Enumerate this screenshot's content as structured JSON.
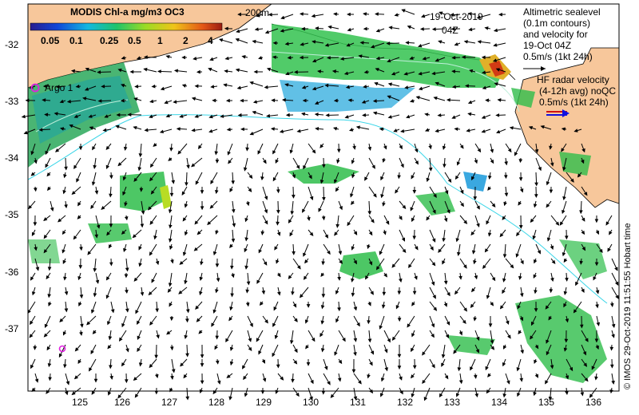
{
  "map": {
    "colorbar": {
      "title": "MODIS Chl-a mg/m3 OC3",
      "tick_labels": [
        "0.05",
        "0.1",
        "0.25",
        "0.5",
        "1",
        "2",
        "4"
      ],
      "colors": [
        "#2a1d8f",
        "#1046d8",
        "#13b8e0",
        "#1fc46a",
        "#9bdc24",
        "#f0c419",
        "#e35616",
        "#9a1d12"
      ]
    },
    "contour_label": "200m",
    "date_label": "19-Oct-2019",
    "time_label": "04Z",
    "altimetry_legend": [
      "Altimetric sealevel",
      "(0.1m contours)",
      "and velocity for",
      "19-Oct 04Z",
      "0.5m/s (1kt 24h)"
    ],
    "radar_legend": [
      "HF radar velocity",
      "(4-12h avg) noQC",
      "0.5m/s (1kt 24h)"
    ],
    "argo_label": "Argo 1",
    "x_ticks": [
      "125",
      "126",
      "127",
      "128",
      "129",
      "130",
      "131",
      "132",
      "133",
      "134",
      "135",
      "136"
    ],
    "y_ticks": [
      "-32",
      "-33",
      "-34",
      "-35",
      "-36",
      "-37"
    ],
    "credit": "© IMOS 29-Oct-2019 11:51:55 Hobart time",
    "colors": {
      "land": "#f7c79b",
      "ocean": "#ffffff",
      "contour": "#3bd6e8",
      "argo": "#e020e0",
      "radar_arrow": "#1010e0",
      "radar_arrow_2": "#d01010",
      "chl_high": "#d23a14",
      "chl_mid": "#2ebd4a",
      "chl_low": "#3aa8e0"
    }
  }
}
